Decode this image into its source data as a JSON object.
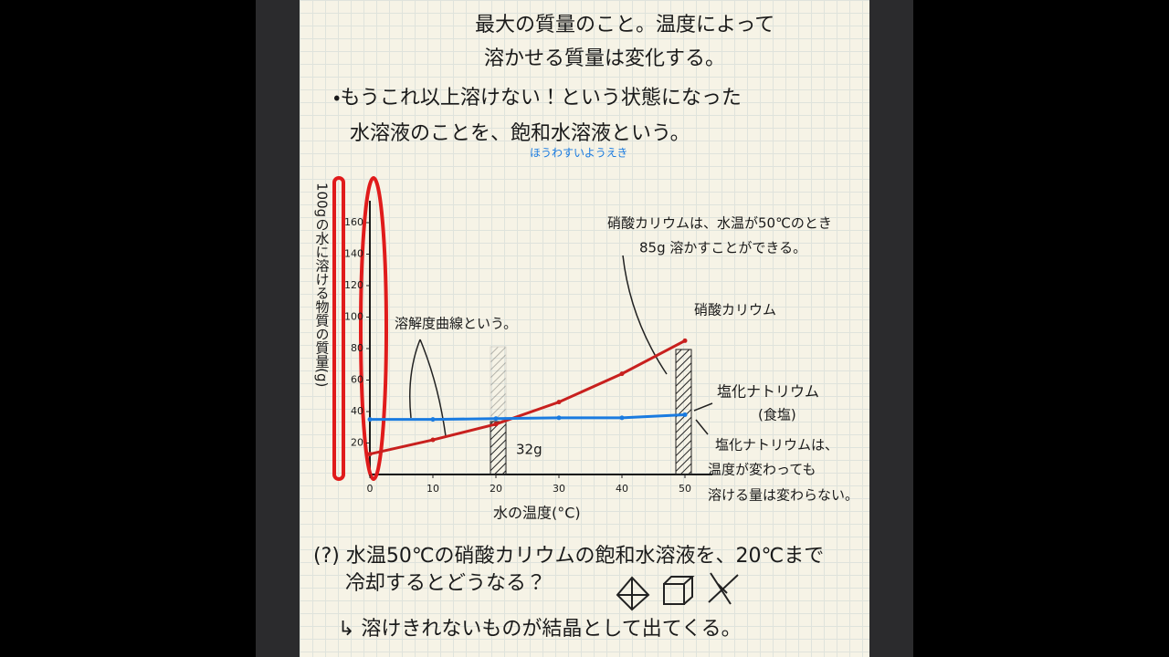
{
  "notes": {
    "line1": "最大の質量のこと。温度によって",
    "line2": "溶かせる質量は変化する。",
    "bullet1": "・もうこれ以上溶けない！という状態になった",
    "bullet2": "水溶液のことを、飽和水溶液という。",
    "reading": "ほうわすいようえき",
    "question1": "(?) 水温50℃の硝酸カリウムの飽和水溶液を、20℃まで",
    "question2": "冷却するとどうなる？",
    "answer": "↳ 溶けきれないものが結晶として出てくる。"
  },
  "chart_data": {
    "type": "line",
    "y_label": "100gの水に溶ける物質の質量(g)",
    "x_label": "水の温度(°C)",
    "x": [
      0,
      10,
      20,
      30,
      40,
      50
    ],
    "series": [
      {
        "name": "硝酸カリウム",
        "color": "#c8201e",
        "values": [
          13,
          22,
          32,
          46,
          64,
          85
        ]
      },
      {
        "name": "塩化ナトリウム",
        "color": "#1a7be0",
        "values": [
          35,
          35,
          35.5,
          36,
          36,
          38
        ]
      }
    ],
    "xlim": [
      0,
      52
    ],
    "ylim": [
      0,
      165
    ],
    "xticks": [
      0,
      10,
      20,
      30,
      40,
      50
    ],
    "yticks": [
      20,
      40,
      60,
      80,
      100,
      120,
      140,
      160
    ],
    "annotations": [
      "溶解度曲線という。",
      "硝酸カリウムは、水温が50℃のとき",
      "85g 溶かすことができる。",
      "(食塩)",
      "32g",
      "塩化ナトリウムは、",
      "温度が変わっても",
      "溶ける量は変わらない。"
    ]
  }
}
